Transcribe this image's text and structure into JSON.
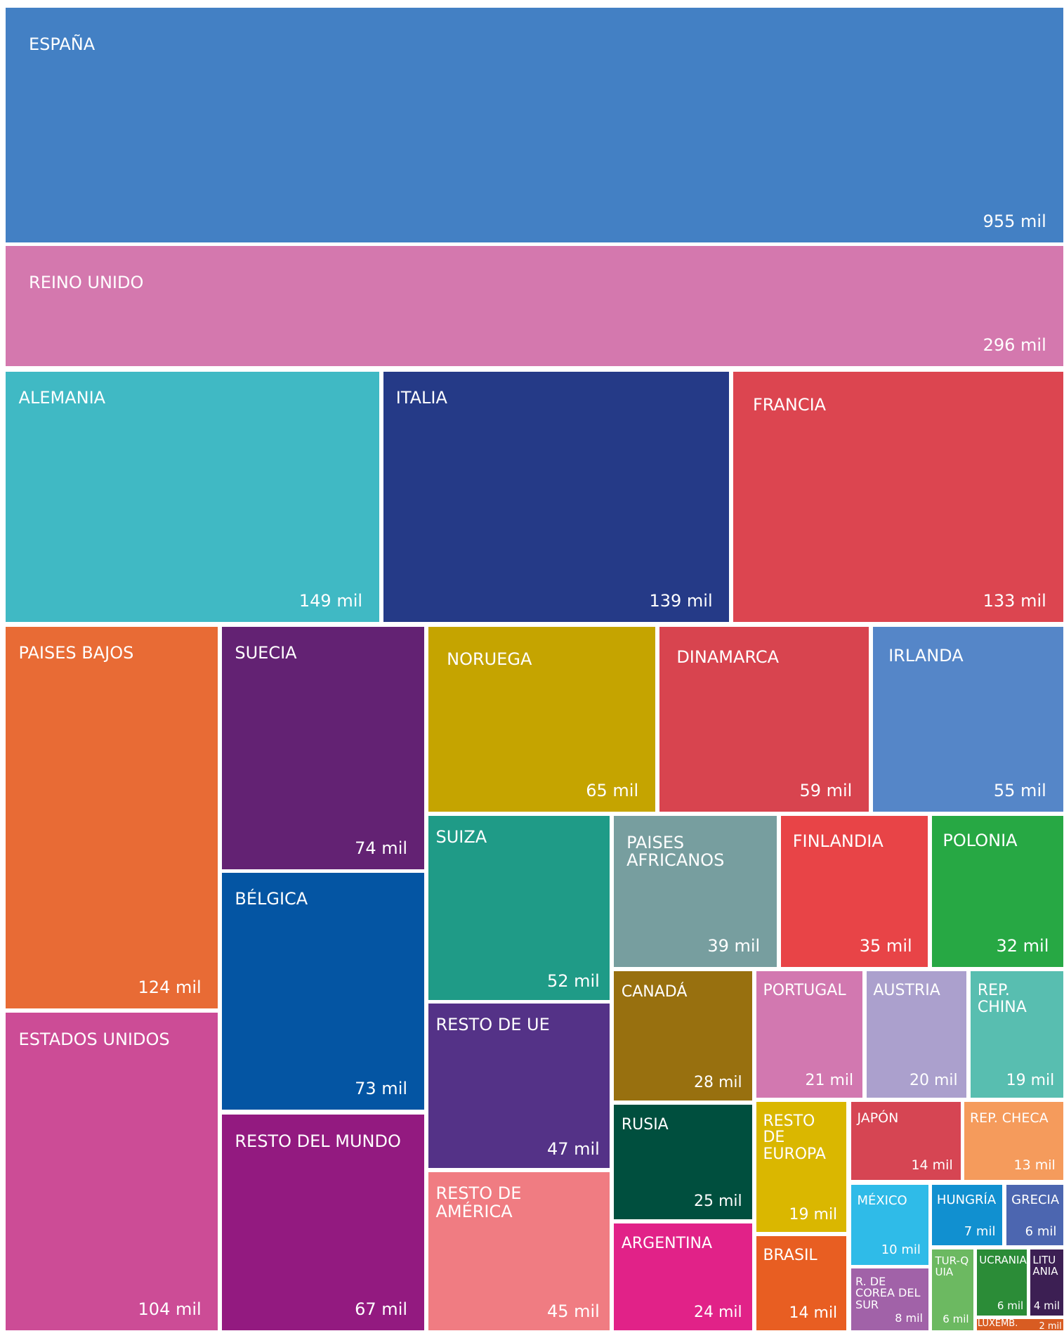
{
  "chart_data": {
    "type": "treemap",
    "categories": [
      "ESPAÑA",
      "REINO UNIDO",
      "ALEMANIA",
      "ITALIA",
      "FRANCIA",
      "PAISES BAJOS",
      "ESTADOS UNIDOS",
      "SUECIA",
      "BÉLGICA",
      "RESTO DEL MUNDO",
      "NORUEGA",
      "DINAMARCA",
      "IRLANDA",
      "SUIZA",
      "PAISES AFRICANOS",
      "FINLANDIA",
      "POLONIA",
      "RESTO DE UE",
      "RESTO DE AMÉRICA",
      "CANADÁ",
      "RUSIA",
      "ARGENTINA",
      "PORTUGAL",
      "AUSTRIA",
      "REP. CHINA",
      "RESTO DE EUROPA",
      "BRASIL",
      "JAPÓN",
      "REP. CHECA",
      "MÉXICO",
      "HUNGRÍA",
      "GRECIA",
      "R. DE COREA DEL SUR",
      "TUR-QUIA",
      "UCRANIA",
      "LITUANIA",
      "LUXEMB."
    ],
    "values": [
      955,
      296,
      149,
      139,
      133,
      124,
      104,
      74,
      73,
      67,
      65,
      59,
      55,
      52,
      39,
      35,
      32,
      47,
      45,
      28,
      25,
      24,
      21,
      20,
      19,
      19,
      14,
      14,
      13,
      10,
      7,
      6,
      8,
      6,
      6,
      4,
      2
    ],
    "value_labels": [
      "955 mil",
      "296 mil",
      "149 mil",
      "139 mil",
      "133 mil",
      "124 mil",
      "104 mil",
      "74 mil",
      "73 mil",
      "67 mil",
      "65 mil",
      "59 mil",
      "55 mil",
      "52 mil",
      "39 mil",
      "35 mil",
      "32 mil",
      "47 mil",
      "45 mil",
      "28 mil",
      "25 mil",
      "24 mil",
      "21 mil",
      "20 mil",
      "19 mil",
      "19 mil",
      "14 mil",
      "14 mil",
      "13 mil",
      "10 mil",
      "7 mil",
      "6 mil",
      "8 mil",
      "6 mil",
      "6 mil",
      "4 mil",
      "2 mil"
    ],
    "colors": [
      "#4380c4",
      "#d478ae",
      "#40b9c4",
      "#253a87",
      "#dc4550",
      "#e86b35",
      "#cc4c96",
      "#632273",
      "#0455a3",
      "#931a80",
      "#c5a400",
      "#d8444f",
      "#5586c8",
      "#1f9b87",
      "#779e9f",
      "#e84447",
      "#27a844",
      "#543287",
      "#f07c82",
      "#98700f",
      "#004f3e",
      "#e12288",
      "#d278b0",
      "#aba0cd",
      "#58beb0",
      "#dab700",
      "#e85e22",
      "#d64553",
      "#f59b5c",
      "#2fbbe8",
      "#1190d0",
      "#4c66b0",
      "#a162a8",
      "#6cb961",
      "#2b8c37",
      "#3c1f53",
      "#d85c22"
    ]
  }
}
